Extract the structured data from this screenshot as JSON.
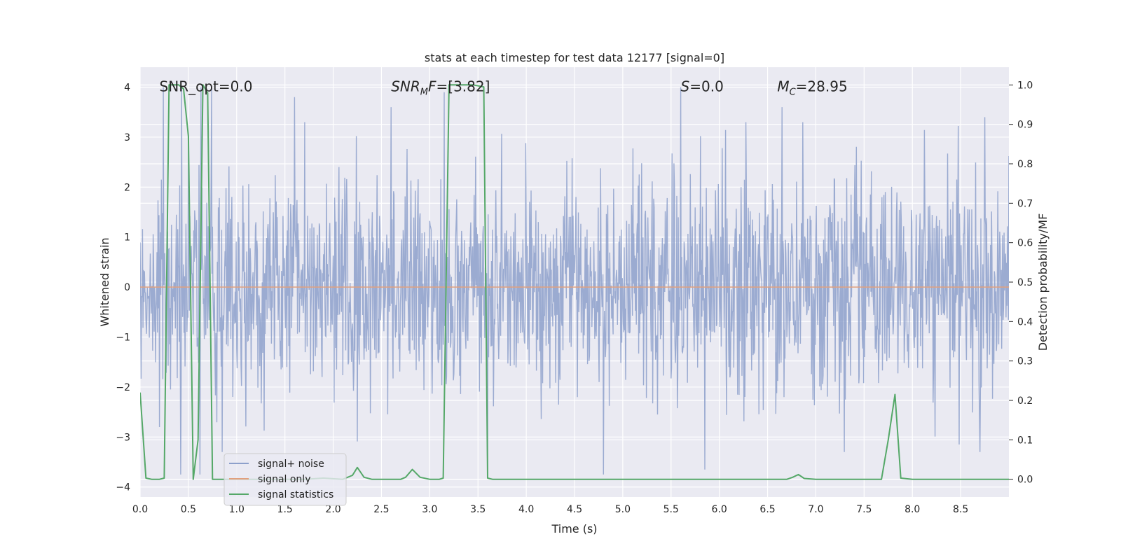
{
  "chart_data": {
    "type": "line",
    "title": "stats at each timestep for test data 12177 [signal=0]",
    "xlabel": "Time (s)",
    "ylabel": "Whitened strain",
    "y2label": "Detection probability/MF",
    "xlim": [
      0.0,
      9.0
    ],
    "ylim": [
      -4.2,
      4.4
    ],
    "y2lim": [
      -0.045,
      1.045
    ],
    "xticks": [
      "0.0",
      "0.5",
      "1.0",
      "1.5",
      "2.0",
      "2.5",
      "3.0",
      "3.5",
      "4.0",
      "4.5",
      "5.0",
      "5.5",
      "6.0",
      "6.5",
      "7.0",
      "7.5",
      "8.0",
      "8.5"
    ],
    "yticks": [
      "4",
      "3",
      "2",
      "1",
      "0",
      "−1",
      "−2",
      "−3",
      "−4"
    ],
    "y2ticks": [
      "1.0",
      "0.9",
      "0.8",
      "0.7",
      "0.6",
      "0.5",
      "0.4",
      "0.3",
      "0.2",
      "0.1",
      "0.0"
    ],
    "annotations": [
      {
        "label": "SNR_opt=0.0",
        "x": 0.2,
        "y": 4.0
      },
      {
        "label": "SNR_MF=[3.82]",
        "x": 2.6,
        "y": 4.0
      },
      {
        "label": "S=0.0",
        "x": 5.6,
        "y": 4.0
      },
      {
        "label": "M_c=28.95",
        "x": 6.6,
        "y": 4.0
      }
    ],
    "legend": {
      "position": "lower-left",
      "entries": [
        {
          "label": "signal+ noise",
          "color": "#8da0cb"
        },
        {
          "label": "signal only",
          "color": "#e1a07e"
        },
        {
          "label": "signal statistics",
          "color": "#55a868"
        }
      ]
    },
    "series": [
      {
        "name": "signal+ noise",
        "axis": "left",
        "style": "noise",
        "sample_rate_hz": 200,
        "std": 1.05,
        "seed": 12177,
        "peaks": [
          {
            "x": 0.24,
            "y": 4.0
          },
          {
            "x": 0.43,
            "y": 4.0
          },
          {
            "x": 0.63,
            "y": 4.0
          },
          {
            "x": 0.74,
            "y": 4.0
          },
          {
            "x": 1.6,
            "y": 3.8
          },
          {
            "x": 2.6,
            "y": 3.6
          },
          {
            "x": 3.15,
            "y": 3.9
          },
          {
            "x": 3.6,
            "y": 3.8
          },
          {
            "x": 5.6,
            "y": 4.0
          },
          {
            "x": 5.85,
            "y": 3.6
          },
          {
            "x": 6.65,
            "y": 3.6
          },
          {
            "x": 8.75,
            "y": 3.4
          },
          {
            "x": 0.2,
            "y": -2.8
          },
          {
            "x": 0.42,
            "y": -3.75
          },
          {
            "x": 0.62,
            "y": -3.75
          },
          {
            "x": 3.6,
            "y": -3.75
          },
          {
            "x": 4.8,
            "y": -3.75
          },
          {
            "x": 5.85,
            "y": -3.65
          },
          {
            "x": 8.7,
            "y": -3.3
          }
        ]
      },
      {
        "name": "signal only",
        "axis": "left",
        "x": [
          0.0,
          9.0
        ],
        "y": [
          0.0,
          0.0
        ]
      },
      {
        "name": "signal statistics",
        "axis": "right",
        "x": [
          0.0,
          0.06,
          0.12,
          0.2,
          0.25,
          0.3,
          0.4,
          0.45,
          0.5,
          0.55,
          0.6,
          0.65,
          0.7,
          0.75,
          0.8,
          0.9,
          1.0,
          1.2,
          1.5,
          1.7,
          1.9,
          2.1,
          2.2,
          2.25,
          2.32,
          2.4,
          2.55,
          2.7,
          2.75,
          2.82,
          2.9,
          3.0,
          3.1,
          3.14,
          3.2,
          3.3,
          3.45,
          3.56,
          3.6,
          3.65,
          3.75,
          4.0,
          5.0,
          6.0,
          6.7,
          6.76,
          6.82,
          6.88,
          7.0,
          7.3,
          7.68,
          7.75,
          7.82,
          7.88,
          8.0,
          8.5,
          9.0
        ],
        "y": [
          0.22,
          0.003,
          0.0,
          0.0,
          0.003,
          1.0,
          1.0,
          0.99,
          0.87,
          0.0,
          0.1,
          1.0,
          0.98,
          0.0,
          0.0,
          0.0,
          0.0,
          0.0,
          0.0,
          0.0,
          0.003,
          0.0,
          0.01,
          0.03,
          0.005,
          0.0,
          0.0,
          0.0,
          0.005,
          0.025,
          0.005,
          0.0,
          0.0,
          0.003,
          1.0,
          1.0,
          1.0,
          0.995,
          0.003,
          0.0,
          0.0,
          0.0,
          0.0,
          0.0,
          0.0,
          0.005,
          0.012,
          0.002,
          0.0,
          0.0,
          0.0,
          0.1,
          0.215,
          0.003,
          0.0,
          0.0,
          0.0
        ]
      }
    ]
  }
}
